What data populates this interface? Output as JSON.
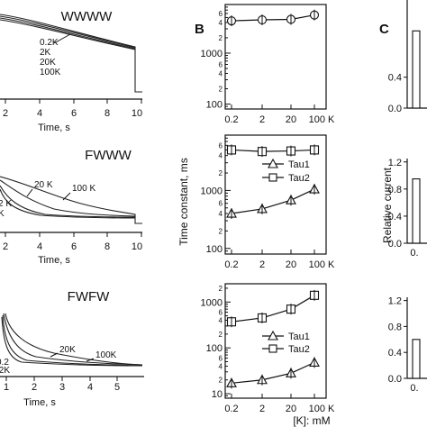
{
  "panels": [
    {
      "id": "wwww",
      "title": "WWWW",
      "xlabel": "Time, s",
      "xticks": [
        "2",
        "4",
        "6",
        "8",
        "10"
      ],
      "xlim": [
        0,
        10
      ],
      "labels": [
        "0.2K",
        "2K",
        "20K",
        "100K"
      ]
    },
    {
      "id": "fwww",
      "title": "FWWW",
      "xlabel": "Time, s",
      "xticks": [
        "2",
        "4",
        "6",
        "8",
        "10"
      ],
      "xlim": [
        0,
        10
      ],
      "labels": [
        "20 K",
        "100 K",
        "2 K",
        "K"
      ]
    },
    {
      "id": "fwfw",
      "title": "FWFW",
      "xlabel": "Time, s",
      "xticks": [
        "1",
        "2",
        "3",
        "4",
        "5"
      ],
      "xlim": [
        0,
        5.5
      ],
      "labels": [
        "20K",
        "100K",
        "0.2",
        ".2K"
      ]
    }
  ],
  "chart_data": [
    {
      "id": "B-top",
      "type": "line",
      "panel_label": "B",
      "categories": [
        "0.2",
        "2",
        "20",
        "100 K"
      ],
      "yscale": "log",
      "ylim": [
        80,
        9000
      ],
      "yticks": [
        "100",
        "1000"
      ],
      "series": [
        {
          "name": "",
          "marker": "circle",
          "values": [
            4300,
            4500,
            4600,
            5600
          ]
        }
      ]
    },
    {
      "id": "B-mid",
      "type": "line",
      "categories": [
        "0.2",
        "2",
        "20",
        "100 K"
      ],
      "yscale": "log",
      "ylim": [
        80,
        9000
      ],
      "yticks": [
        "100",
        "1000"
      ],
      "ylabel": "Time constant, ms",
      "series": [
        {
          "name": "Tau1",
          "marker": "triangle",
          "values": [
            400,
            480,
            680,
            1050
          ]
        },
        {
          "name": "Tau2",
          "marker": "square",
          "values": [
            5000,
            4700,
            4800,
            5000
          ]
        }
      ]
    },
    {
      "id": "B-bot",
      "type": "line",
      "categories": [
        "0.2",
        "2",
        "20",
        "100 K"
      ],
      "yscale": "log",
      "ylim": [
        8,
        2500
      ],
      "yticks": [
        "10",
        "100",
        "1000"
      ],
      "xlabel": "[K]: mM",
      "series": [
        {
          "name": "Tau1",
          "marker": "triangle",
          "values": [
            17,
            20,
            28,
            48
          ]
        },
        {
          "name": "Tau2",
          "marker": "square",
          "values": [
            370,
            450,
            700,
            1400
          ]
        }
      ]
    },
    {
      "id": "C-top",
      "type": "bar",
      "panel_label": "C",
      "categories": [
        ""
      ],
      "ylim": [
        0,
        1.4
      ],
      "yticks": [
        "0.4",
        "0.0"
      ],
      "values": [
        1.0
      ]
    },
    {
      "id": "C-mid",
      "type": "bar",
      "categories": [
        "0."
      ],
      "ylim": [
        0,
        1.25
      ],
      "yticks": [
        "1.2",
        "0.8",
        "0.4",
        "0.0"
      ],
      "ylabel": "Relative current",
      "values": [
        0.95
      ]
    },
    {
      "id": "C-bot",
      "type": "bar",
      "categories": [
        "0."
      ],
      "ylim": [
        0,
        1.25
      ],
      "yticks": [
        "1.2",
        "0.8",
        "0.4",
        "0.0"
      ],
      "values": [
        0.6
      ]
    }
  ]
}
